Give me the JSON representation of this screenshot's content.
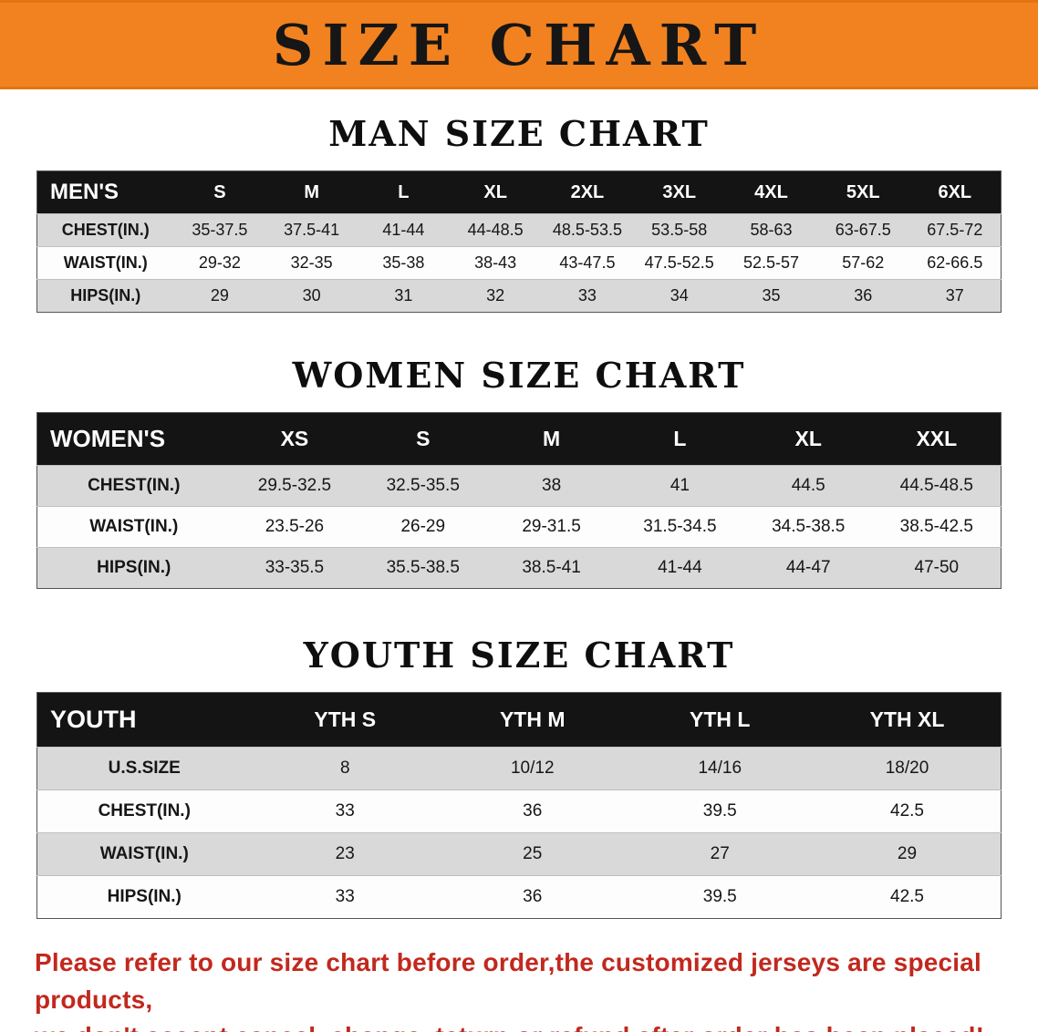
{
  "banner": {
    "title": "SIZE CHART",
    "bg_color": "#f28220",
    "text_color": "#161616"
  },
  "sections": [
    {
      "heading": "MAN SIZE CHART",
      "table": {
        "header": [
          "MEN'S",
          "S",
          "M",
          "L",
          "XL",
          "2XL",
          "3XL",
          "4XL",
          "5XL",
          "6XL"
        ],
        "rows": [
          [
            "CHEST(IN.)",
            "35-37.5",
            "37.5-41",
            "41-44",
            "44-48.5",
            "48.5-53.5",
            "53.5-58",
            "58-63",
            "63-67.5",
            "67.5-72"
          ],
          [
            "WAIST(IN.)",
            "29-32",
            "32-35",
            "35-38",
            "38-43",
            "43-47.5",
            "47.5-52.5",
            "52.5-57",
            "57-62",
            "62-66.5"
          ],
          [
            "HIPS(IN.)",
            "29",
            "30",
            "31",
            "32",
            "33",
            "34",
            "35",
            "36",
            "37"
          ]
        ]
      }
    },
    {
      "heading": "WOMEN SIZE CHART",
      "table": {
        "header": [
          "WOMEN'S",
          "XS",
          "S",
          "M",
          "L",
          "XL",
          "XXL"
        ],
        "rows": [
          [
            "CHEST(IN.)",
            "29.5-32.5",
            "32.5-35.5",
            "38",
            "41",
            "44.5",
            "44.5-48.5"
          ],
          [
            "WAIST(IN.)",
            "23.5-26",
            "26-29",
            "29-31.5",
            "31.5-34.5",
            "34.5-38.5",
            "38.5-42.5"
          ],
          [
            "HIPS(IN.)",
            "33-35.5",
            "35.5-38.5",
            "38.5-41",
            "41-44",
            "44-47",
            "47-50"
          ]
        ]
      }
    },
    {
      "heading": "YOUTH SIZE CHART",
      "table": {
        "header": [
          "YOUTH",
          "YTH S",
          "YTH M",
          "YTH L",
          "YTH XL"
        ],
        "rows": [
          [
            "U.S.SIZE",
            "8",
            "10/12",
            "14/16",
            "18/20"
          ],
          [
            "CHEST(IN.)",
            "33",
            "36",
            "39.5",
            "42.5"
          ],
          [
            "WAIST(IN.)",
            "23",
            "25",
            "27",
            "29"
          ],
          [
            "HIPS(IN.)",
            "33",
            "36",
            "39.5",
            "42.5"
          ]
        ]
      }
    }
  ],
  "footer": {
    "lines": [
      "Please refer to our size chart before order,the customized jerseys are special products,",
      "we don't accept cancel, change, teturn or refund after order has been placed!"
    ],
    "text_color": "#c2281e"
  }
}
